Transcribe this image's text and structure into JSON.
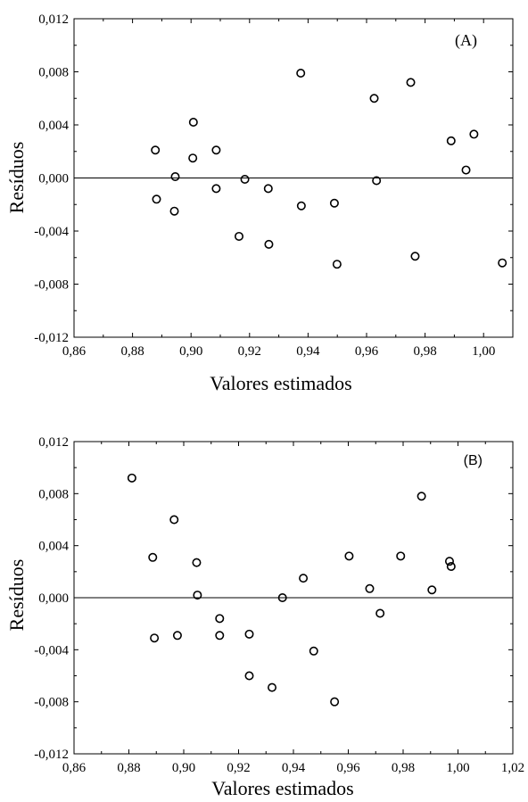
{
  "chart_data": [
    {
      "type": "scatter",
      "panel_label": "(A)",
      "xlabel": "Valores estimados",
      "ylabel": "Resíduos",
      "xlim": [
        0.86,
        1.01
      ],
      "ylim": [
        -0.012,
        0.012
      ],
      "x_ticks": [
        0.86,
        0.88,
        0.9,
        0.92,
        0.94,
        0.96,
        0.98,
        1.0
      ],
      "x_tick_labels": [
        "0,86",
        "0,88",
        "0,90",
        "0,92",
        "0,94",
        "0,96",
        "0,98",
        "1,00"
      ],
      "y_ticks": [
        0.012,
        0.008,
        0.004,
        0.0,
        -0.004,
        -0.008,
        -0.012
      ],
      "y_tick_labels": [
        "0,012",
        "0,008",
        "0,004",
        "0,000",
        "-0,004",
        "-0,008",
        "-0,012"
      ],
      "reference_line_y": 0,
      "grid": false,
      "points": [
        {
          "x": 0.8878,
          "y": 0.0021
        },
        {
          "x": 0.8882,
          "y": -0.0016
        },
        {
          "x": 0.8946,
          "y": 0.0001
        },
        {
          "x": 0.8943,
          "y": -0.0025
        },
        {
          "x": 0.9008,
          "y": 0.0042
        },
        {
          "x": 0.9006,
          "y": 0.0015
        },
        {
          "x": 0.9086,
          "y": 0.0021
        },
        {
          "x": 0.9086,
          "y": -0.0008
        },
        {
          "x": 0.9164,
          "y": -0.0044
        },
        {
          "x": 0.9184,
          "y": -0.0001
        },
        {
          "x": 0.9264,
          "y": -0.0008
        },
        {
          "x": 0.9266,
          "y": -0.005
        },
        {
          "x": 0.9375,
          "y": 0.0079
        },
        {
          "x": 0.9377,
          "y": -0.0021
        },
        {
          "x": 0.949,
          "y": -0.0019
        },
        {
          "x": 0.9499,
          "y": -0.0065
        },
        {
          "x": 0.9626,
          "y": 0.006
        },
        {
          "x": 0.9634,
          "y": -0.0002
        },
        {
          "x": 0.9751,
          "y": 0.0072
        },
        {
          "x": 0.9766,
          "y": -0.0059
        },
        {
          "x": 0.9889,
          "y": 0.0028
        },
        {
          "x": 0.994,
          "y": 0.0006
        },
        {
          "x": 0.9967,
          "y": 0.0033
        },
        {
          "x": 1.0064,
          "y": -0.0064
        }
      ]
    },
    {
      "type": "scatter",
      "panel_label": "(B)",
      "xlabel": "Valores estimados",
      "ylabel": "Resíduos",
      "xlim": [
        0.86,
        1.02
      ],
      "ylim": [
        -0.012,
        0.012
      ],
      "x_ticks": [
        0.86,
        0.88,
        0.9,
        0.92,
        0.94,
        0.96,
        0.98,
        1.0,
        1.02
      ],
      "x_tick_labels": [
        "0,86",
        "0,88",
        "0,90",
        "0,92",
        "0,94",
        "0,96",
        "0,98",
        "1,00",
        "1,02"
      ],
      "y_ticks": [
        0.012,
        0.008,
        0.004,
        0.0,
        -0.004,
        -0.008,
        -0.012
      ],
      "y_tick_labels": [
        "0,012",
        "0,008",
        "0,004",
        "0,000",
        "-0,004",
        "-0,008",
        "-0,012"
      ],
      "reference_line_y": 0,
      "grid": false,
      "points": [
        {
          "x": 0.8811,
          "y": 0.0092
        },
        {
          "x": 0.8887,
          "y": 0.0031
        },
        {
          "x": 0.8893,
          "y": -0.0031
        },
        {
          "x": 0.8965,
          "y": 0.006
        },
        {
          "x": 0.8977,
          "y": -0.0029
        },
        {
          "x": 0.9047,
          "y": 0.0027
        },
        {
          "x": 0.905,
          "y": 0.0002
        },
        {
          "x": 0.9131,
          "y": -0.0016
        },
        {
          "x": 0.9131,
          "y": -0.0029
        },
        {
          "x": 0.9239,
          "y": -0.0028
        },
        {
          "x": 0.9239,
          "y": -0.006
        },
        {
          "x": 0.9322,
          "y": -0.0069
        },
        {
          "x": 0.936,
          "y": 0.0
        },
        {
          "x": 0.9436,
          "y": 0.0015
        },
        {
          "x": 0.9474,
          "y": -0.0041
        },
        {
          "x": 0.955,
          "y": -0.008
        },
        {
          "x": 0.9603,
          "y": 0.0032
        },
        {
          "x": 0.9678,
          "y": 0.0007
        },
        {
          "x": 0.9716,
          "y": -0.0012
        },
        {
          "x": 0.9791,
          "y": 0.0032
        },
        {
          "x": 0.9867,
          "y": 0.0078
        },
        {
          "x": 0.9905,
          "y": 0.0006
        },
        {
          "x": 0.9969,
          "y": 0.0028
        },
        {
          "x": 0.9975,
          "y": 0.0024
        }
      ]
    }
  ]
}
